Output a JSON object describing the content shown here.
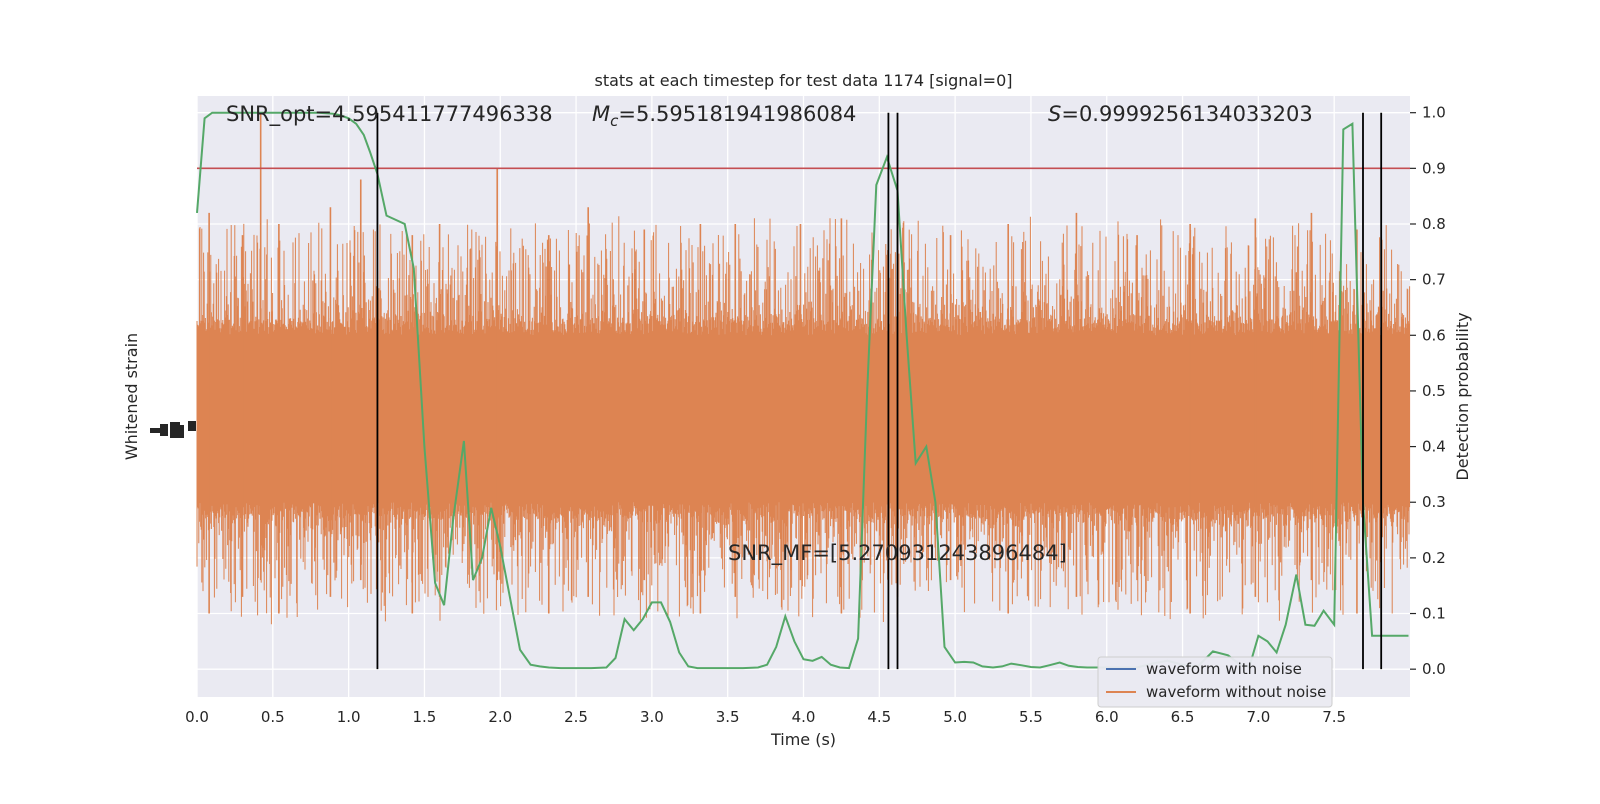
{
  "chart_data": {
    "type": "line",
    "title": "stats at each timestep for test data 1174 [signal=0]",
    "xlabel": "Time (s)",
    "ylabel_left": "Whitened strain",
    "ylabel_right": "Detection probability",
    "xlim": [
      0.0,
      8.0
    ],
    "ylim_right": [
      -0.05,
      1.03
    ],
    "x_ticks": [
      "0.0",
      "0.5",
      "1.0",
      "1.5",
      "2.0",
      "2.5",
      "3.0",
      "3.5",
      "4.0",
      "4.5",
      "5.0",
      "5.5",
      "6.0",
      "6.5",
      "7.0",
      "7.5"
    ],
    "x_tick_values": [
      0.0,
      0.5,
      1.0,
      1.5,
      2.0,
      2.5,
      3.0,
      3.5,
      4.0,
      4.5,
      5.0,
      5.5,
      6.0,
      6.5,
      7.0,
      7.5
    ],
    "y_right_ticks": [
      "0.0",
      "0.1",
      "0.2",
      "0.3",
      "0.4",
      "0.5",
      "0.6",
      "0.7",
      "0.8",
      "0.9",
      "1.0"
    ],
    "y_right_tick_values": [
      0.0,
      0.1,
      0.2,
      0.3,
      0.4,
      0.5,
      0.6,
      0.7,
      0.8,
      0.9,
      1.0
    ],
    "threshold": 0.9,
    "annotations": {
      "snr_opt": "SNR_opt=4.595411777496338",
      "mc_symbol": "M",
      "mc_sub": "c",
      "mc_value": "=5.595181941986084",
      "s_symbol": "S",
      "s_value": "=0.9999256134033203",
      "snr_mf": "SNR_MF=[5.270931243896484]"
    },
    "vertical_lines_x": [
      1.19,
      4.56,
      4.62,
      7.69,
      7.81
    ],
    "legend": {
      "position": "lower right",
      "entries": [
        "waveform with noise",
        "waveform without noise"
      ]
    },
    "series": [
      {
        "name": "waveform with noise",
        "color": "#4c72b0",
        "note_values": []
      },
      {
        "name": "waveform without noise",
        "color": "#dd8452",
        "peak_x": [
          0.08,
          0.3,
          0.42,
          0.54,
          0.88,
          1.08,
          1.42,
          1.6,
          1.98,
          2.32,
          2.58,
          2.95,
          3.32,
          3.55,
          3.98,
          4.25,
          4.62,
          4.97,
          5.35,
          5.8,
          6.2,
          6.55,
          6.98,
          7.35,
          7.65
        ],
        "peak_y": [
          0.82,
          0.78,
          1.0,
          0.8,
          0.83,
          0.88,
          0.78,
          0.8,
          0.9,
          0.78,
          0.83,
          0.79,
          0.8,
          0.8,
          0.8,
          0.81,
          0.87,
          0.78,
          0.8,
          0.82,
          0.78,
          0.8,
          0.81,
          0.82,
          0.79
        ]
      },
      {
        "name": "",
        "color": "#55a868",
        "x": [
          0.0,
          0.05,
          0.1,
          0.15,
          0.2,
          0.3,
          0.4,
          0.5,
          0.6,
          0.7,
          0.8,
          0.9,
          0.95,
          1.0,
          1.05,
          1.1,
          1.14,
          1.19,
          1.25,
          1.37,
          1.43,
          1.5,
          1.57,
          1.63,
          1.69,
          1.76,
          1.82,
          1.88,
          1.94,
          2.0,
          2.07,
          2.13,
          2.2,
          2.26,
          2.32,
          2.4,
          2.5,
          2.6,
          2.7,
          2.76,
          2.82,
          2.88,
          2.94,
          3.0,
          3.06,
          3.12,
          3.18,
          3.24,
          3.3,
          3.4,
          3.5,
          3.6,
          3.7,
          3.76,
          3.82,
          3.88,
          3.94,
          4.0,
          4.06,
          4.12,
          4.18,
          4.24,
          4.3,
          4.36,
          4.42,
          4.48,
          4.55,
          4.62,
          4.68,
          4.74,
          4.81,
          4.87,
          4.93,
          5.0,
          5.06,
          5.12,
          5.18,
          5.25,
          5.31,
          5.37,
          5.44,
          5.5,
          5.56,
          5.62,
          5.69,
          5.75,
          5.81,
          5.87,
          5.94,
          6.0,
          6.06,
          6.12,
          6.2,
          6.3,
          6.4,
          6.5,
          6.6,
          6.7,
          6.8,
          6.87,
          6.94,
          7.0,
          7.06,
          7.12,
          7.18,
          7.25,
          7.31,
          7.37,
          7.43,
          7.5,
          7.56,
          7.62,
          7.69,
          7.75,
          7.81,
          7.87,
          7.93,
          7.99
        ],
        "y": [
          0.82,
          0.99,
          1.0,
          1.0,
          1.0,
          1.0,
          1.0,
          1.0,
          1.0,
          1.0,
          1.0,
          0.998,
          0.995,
          0.99,
          0.98,
          0.96,
          0.93,
          0.89,
          0.815,
          0.8,
          0.72,
          0.4,
          0.155,
          0.115,
          0.27,
          0.41,
          0.16,
          0.2,
          0.29,
          0.22,
          0.12,
          0.035,
          0.008,
          0.005,
          0.003,
          0.002,
          0.002,
          0.002,
          0.003,
          0.02,
          0.09,
          0.07,
          0.09,
          0.12,
          0.12,
          0.085,
          0.03,
          0.005,
          0.002,
          0.002,
          0.002,
          0.002,
          0.003,
          0.008,
          0.04,
          0.095,
          0.05,
          0.018,
          0.015,
          0.022,
          0.008,
          0.003,
          0.002,
          0.055,
          0.5,
          0.87,
          0.92,
          0.86,
          0.6,
          0.37,
          0.4,
          0.3,
          0.04,
          0.012,
          0.013,
          0.012,
          0.005,
          0.003,
          0.005,
          0.01,
          0.007,
          0.004,
          0.003,
          0.007,
          0.012,
          0.006,
          0.004,
          0.003,
          0.003,
          0.003,
          0.003,
          0.003,
          0.003,
          0.01,
          0.015,
          0.008,
          0.005,
          0.032,
          0.025,
          0.01,
          0.004,
          0.06,
          0.05,
          0.03,
          0.08,
          0.17,
          0.08,
          0.078,
          0.105,
          0.08,
          0.97,
          0.98,
          0.3,
          0.06,
          0.06,
          0.06,
          0.06,
          0.06
        ]
      }
    ],
    "colors": {
      "plot_bg": "#eaeaf2",
      "grid": "#ffffff",
      "threshold_line": "#c44e52",
      "vline": "#000000"
    }
  }
}
